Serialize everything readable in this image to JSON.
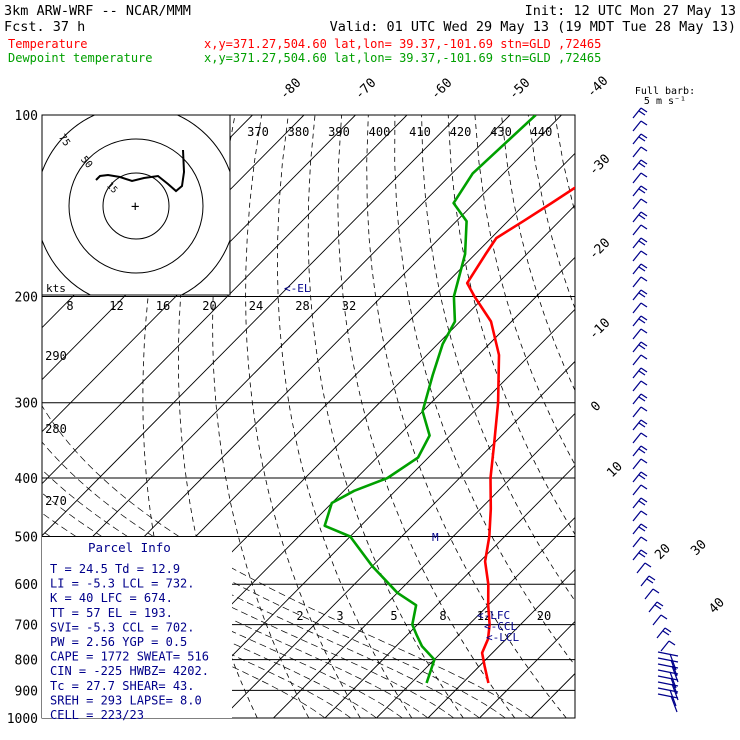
{
  "header": {
    "model_line": "3km ARW-WRF -- NCAR/MMM",
    "init_line": "Init: 12 UTC Mon 27 May 13",
    "fcst_line": "Fcst.    37 h",
    "valid_line": "Valid: 01 UTC Wed 29 May 13 (19 MDT Tue 28 May 13)"
  },
  "legend": [
    {
      "name": "Temperature",
      "location": "x,y=371.27,504.60   lat,lon= 39.37,-101.69  stn=GLD ,72465",
      "color": "#ff0000"
    },
    {
      "name": "Dewpoint temperature",
      "location": "x,y=371.27,504.60   lat,lon= 39.37,-101.69  stn=GLD ,72465",
      "color": "#00a000"
    }
  ],
  "wind_key": {
    "title": "Full barb:",
    "value": "5 m s⁻¹"
  },
  "markers": {
    "el": "<-EL",
    "lfc": "<-LFC",
    "ccl": "<-CCL",
    "lcl": "<-LCL",
    "mean_wind": "M"
  },
  "hodograph": {
    "units": "kts",
    "ring_labels": [
      "15",
      "50",
      "75"
    ]
  },
  "parcel_info": {
    "title": "Parcel Info",
    "rows": [
      "T  =   24.5 Td =  12.9",
      "LI =   -5.3 LCL =  732.",
      "K  =     40 LFC =  674.",
      "TT =     57 EL  =  193.",
      "SVI=   -5.3 CCL =  702.",
      "PW =   2.56 YGP =   0.5",
      "CAPE =  1772 SWEAT=  516",
      "CIN  =  -225 HWBZ= 4202.",
      "Tc   =  27.7 SHEAR=  43.",
      "SREH =   293 LAPSE=  8.0",
      "CELL = 223/23"
    ]
  },
  "chart_data": {
    "type": "line",
    "title": "Skew-T log-p sounding",
    "xlabel": "",
    "ylabel": "",
    "y_scale": "log",
    "ylim": [
      1000,
      100
    ],
    "pressure_ticks": [
      100,
      200,
      300,
      400,
      500,
      600,
      700,
      800,
      900,
      1000
    ],
    "isotherm_labels": [
      "-80",
      "-70",
      "-60",
      "-50",
      "-40",
      "-30",
      "-20",
      "-10",
      "0",
      "10",
      "20",
      "30",
      "40"
    ],
    "theta_labels": [
      "370",
      "380",
      "390",
      "400",
      "410",
      "420",
      "430",
      "440"
    ],
    "theta_side_labels": [
      "290",
      "280",
      "270"
    ],
    "mixing_ratio_upper_labels": [
      "8",
      "12",
      "16",
      "20",
      "24",
      "28",
      "32"
    ],
    "mixing_ratio_lower_labels": [
      "2",
      "3",
      "5",
      "8",
      "12",
      "20"
    ],
    "series": [
      {
        "name": "Temperature",
        "color": "#ff0000",
        "points": [
          [
            875,
            25
          ],
          [
            820,
            21
          ],
          [
            780,
            18
          ],
          [
            740,
            16.5
          ],
          [
            700,
            14
          ],
          [
            650,
            10
          ],
          [
            600,
            6
          ],
          [
            550,
            1
          ],
          [
            500,
            -3
          ],
          [
            450,
            -8
          ],
          [
            400,
            -14
          ],
          [
            350,
            -20
          ],
          [
            300,
            -27
          ],
          [
            250,
            -36
          ],
          [
            220,
            -44
          ],
          [
            200,
            -52
          ],
          [
            190,
            -56
          ],
          [
            170,
            -58
          ],
          [
            160,
            -59
          ],
          [
            150,
            -57
          ],
          [
            140,
            -55
          ],
          [
            130,
            -53
          ],
          [
            115,
            -52
          ],
          [
            100,
            -54
          ]
        ]
      },
      {
        "name": "Dewpoint temperature",
        "color": "#00a000",
        "points": [
          [
            875,
            13
          ],
          [
            800,
            10
          ],
          [
            760,
            5
          ],
          [
            730,
            2
          ],
          [
            700,
            -1
          ],
          [
            650,
            -4
          ],
          [
            620,
            -10
          ],
          [
            560,
            -20
          ],
          [
            500,
            -30
          ],
          [
            480,
            -37
          ],
          [
            440,
            -40
          ],
          [
            420,
            -38
          ],
          [
            400,
            -34
          ],
          [
            370,
            -32
          ],
          [
            340,
            -34
          ],
          [
            310,
            -40
          ],
          [
            270,
            -45
          ],
          [
            240,
            -49
          ],
          [
            220,
            -51
          ],
          [
            200,
            -56
          ],
          [
            170,
            -62
          ],
          [
            150,
            -68
          ],
          [
            140,
            -74
          ],
          [
            125,
            -76
          ],
          [
            100,
            -75
          ]
        ]
      }
    ]
  }
}
